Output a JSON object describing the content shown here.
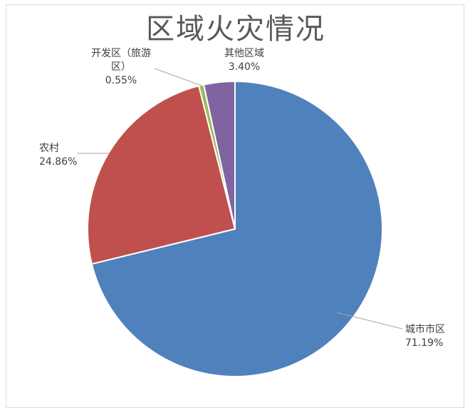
{
  "chart_data": {
    "type": "pie",
    "title": "区域火灾情况",
    "slices": [
      {
        "label": "城市市区",
        "value": 71.19,
        "value_text": "71.19%",
        "color": "#4f81bd"
      },
      {
        "label": "农村",
        "value": 24.86,
        "value_text": "24.86%",
        "color": "#c0504d"
      },
      {
        "label": "开发区（旅游区）",
        "value": 0.55,
        "value_text": "0.55%",
        "color": "#9bbb59"
      },
      {
        "label": "其他区域",
        "value": 3.4,
        "value_text": "3.40%",
        "color": "#8064a2"
      }
    ],
    "legend": "none",
    "start_angle_deg": 0,
    "direction": "clockwise"
  }
}
